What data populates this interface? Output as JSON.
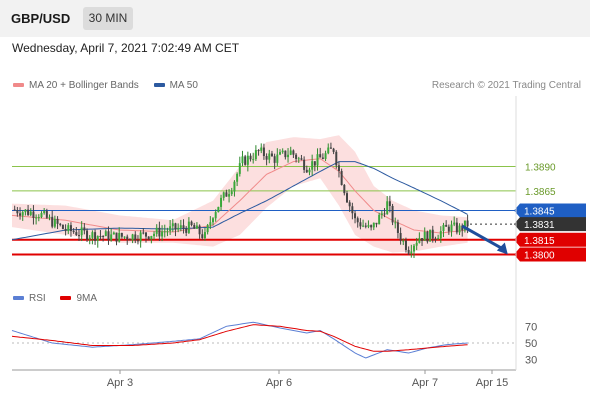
{
  "header": {
    "symbol": "GBP/USD",
    "timeframe": "30 MIN"
  },
  "timestamp": "Wednesday, April 7, 2021 7:02:49 AM CET",
  "legend": [
    {
      "label": "MA 20 + Bollinger Bands",
      "color": "#f08a8a"
    },
    {
      "label": "MA 50",
      "color": "#2c5aa0"
    }
  ],
  "credit": "Research © 2021 Trading Central",
  "rsi_legend": [
    {
      "label": "RSI",
      "color": "#5b7fd4"
    },
    {
      "label": "9MA",
      "color": "#e00000"
    }
  ],
  "chart_data": {
    "type": "line",
    "price_ylim": [
      1.3779,
      1.3958
    ],
    "levels": [
      {
        "label": "1.3890",
        "value": 1.389,
        "style": "resistance",
        "color": "#8bc34a"
      },
      {
        "label": "1.3865",
        "value": 1.3865,
        "style": "resistance",
        "color": "#8bc34a"
      },
      {
        "label": "1.3845",
        "value": 1.3845,
        "style": "pivot",
        "color": "#1f5fc4"
      },
      {
        "label": "1.3831",
        "value": 1.3831,
        "style": "last",
        "color": "#333333"
      },
      {
        "label": "1.3815",
        "value": 1.3815,
        "style": "support",
        "color": "#e00000"
      },
      {
        "label": "1.3800",
        "value": 1.38,
        "style": "support",
        "color": "#e00000"
      }
    ],
    "x_ticks": [
      "Apr 3",
      "Apr 6",
      "Apr 7",
      "Apr 15"
    ],
    "price_series": {
      "bars": 170,
      "keypoints": [
        [
          0,
          1.3846
        ],
        [
          10,
          1.3842
        ],
        [
          20,
          1.3825
        ],
        [
          30,
          1.382
        ],
        [
          40,
          1.3818
        ],
        [
          50,
          1.382
        ],
        [
          60,
          1.3826
        ],
        [
          67,
          1.3828
        ],
        [
          72,
          1.3818
        ],
        [
          75,
          1.3842
        ],
        [
          78,
          1.3855
        ],
        [
          82,
          1.387
        ],
        [
          86,
          1.3895
        ],
        [
          92,
          1.3905
        ],
        [
          98,
          1.3898
        ],
        [
          104,
          1.3905
        ],
        [
          110,
          1.389
        ],
        [
          116,
          1.39
        ],
        [
          120,
          1.3908
        ],
        [
          122,
          1.3885
        ],
        [
          125,
          1.3858
        ],
        [
          128,
          1.3835
        ],
        [
          134,
          1.3825
        ],
        [
          138,
          1.3842
        ],
        [
          140,
          1.3852
        ],
        [
          143,
          1.3828
        ],
        [
          146,
          1.3813
        ],
        [
          148,
          1.3806
        ],
        [
          152,
          1.3818
        ],
        [
          158,
          1.382
        ],
        [
          163,
          1.3828
        ],
        [
          167,
          1.3826
        ],
        [
          170,
          1.3831
        ]
      ]
    },
    "ma20": [
      [
        0,
        1.384
      ],
      [
        20,
        1.3835
      ],
      [
        40,
        1.3825
      ],
      [
        60,
        1.3823
      ],
      [
        75,
        1.383
      ],
      [
        85,
        1.3855
      ],
      [
        95,
        1.3882
      ],
      [
        105,
        1.3895
      ],
      [
        115,
        1.3898
      ],
      [
        122,
        1.3885
      ],
      [
        128,
        1.3865
      ],
      [
        135,
        1.3845
      ],
      [
        142,
        1.3835
      ],
      [
        150,
        1.3825
      ],
      [
        160,
        1.3822
      ],
      [
        170,
        1.3825
      ]
    ],
    "bollinger_upper": [
      [
        0,
        1.3852
      ],
      [
        20,
        1.385
      ],
      [
        40,
        1.384
      ],
      [
        60,
        1.3835
      ],
      [
        75,
        1.3855
      ],
      [
        85,
        1.389
      ],
      [
        95,
        1.3915
      ],
      [
        105,
        1.392
      ],
      [
        115,
        1.3918
      ],
      [
        122,
        1.3922
      ],
      [
        128,
        1.3905
      ],
      [
        135,
        1.387
      ],
      [
        142,
        1.3855
      ],
      [
        150,
        1.3845
      ],
      [
        160,
        1.384
      ],
      [
        170,
        1.3838
      ]
    ],
    "bollinger_lower": [
      [
        0,
        1.3828
      ],
      [
        20,
        1.382
      ],
      [
        40,
        1.3812
      ],
      [
        60,
        1.3812
      ],
      [
        75,
        1.3808
      ],
      [
        85,
        1.382
      ],
      [
        95,
        1.3848
      ],
      [
        105,
        1.387
      ],
      [
        115,
        1.3878
      ],
      [
        122,
        1.385
      ],
      [
        128,
        1.382
      ],
      [
        135,
        1.3808
      ],
      [
        142,
        1.3802
      ],
      [
        150,
        1.3803
      ],
      [
        160,
        1.3808
      ],
      [
        170,
        1.3812
      ]
    ],
    "ma50": [
      [
        0,
        1.3815
      ],
      [
        20,
        1.3825
      ],
      [
        40,
        1.3827
      ],
      [
        60,
        1.3826
      ],
      [
        75,
        1.3828
      ],
      [
        85,
        1.3842
      ],
      [
        95,
        1.3855
      ],
      [
        105,
        1.387
      ],
      [
        115,
        1.3885
      ],
      [
        122,
        1.3895
      ],
      [
        128,
        1.3895
      ],
      [
        135,
        1.3888
      ],
      [
        142,
        1.3878
      ],
      [
        150,
        1.3868
      ],
      [
        160,
        1.3855
      ],
      [
        170,
        1.3841
      ]
    ],
    "forecast_arrow": {
      "from": [
        168,
        1.3829
      ],
      "to": [
        185,
        1.38
      ]
    },
    "rsi_ylim": [
      20,
      80
    ],
    "rsi_ticks": [
      "70",
      "50",
      "30"
    ],
    "rsi": [
      [
        0,
        65
      ],
      [
        15,
        50
      ],
      [
        30,
        45
      ],
      [
        45,
        48
      ],
      [
        60,
        52
      ],
      [
        70,
        55
      ],
      [
        80,
        70
      ],
      [
        90,
        75
      ],
      [
        100,
        68
      ],
      [
        110,
        62
      ],
      [
        115,
        65
      ],
      [
        120,
        55
      ],
      [
        128,
        38
      ],
      [
        132,
        32
      ],
      [
        140,
        42
      ],
      [
        148,
        38
      ],
      [
        155,
        44
      ],
      [
        162,
        48
      ],
      [
        170,
        50
      ]
    ],
    "rsi_ma9": [
      [
        0,
        58
      ],
      [
        15,
        53
      ],
      [
        30,
        47
      ],
      [
        45,
        47
      ],
      [
        60,
        50
      ],
      [
        70,
        54
      ],
      [
        80,
        64
      ],
      [
        90,
        72
      ],
      [
        100,
        70
      ],
      [
        110,
        65
      ],
      [
        115,
        64
      ],
      [
        120,
        58
      ],
      [
        128,
        46
      ],
      [
        135,
        40
      ],
      [
        140,
        40
      ],
      [
        148,
        42
      ],
      [
        155,
        44
      ],
      [
        162,
        46
      ],
      [
        170,
        48
      ]
    ]
  }
}
